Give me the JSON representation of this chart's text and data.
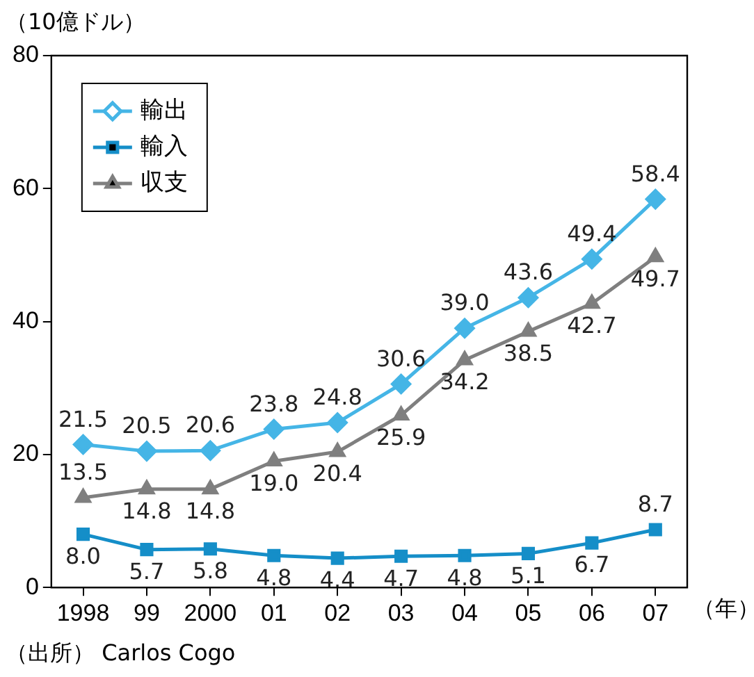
{
  "chart_data": {
    "type": "line",
    "ylabel": "（10億ドル）",
    "xlabel": "（年）",
    "categories": [
      "1998",
      "99",
      "2000",
      "01",
      "02",
      "03",
      "04",
      "05",
      "06",
      "07"
    ],
    "series": [
      {
        "name": "輸出",
        "color": "#45b5e6",
        "marker": "diamond",
        "values": [
          21.5,
          20.5,
          20.6,
          23.8,
          24.8,
          30.6,
          39.0,
          43.6,
          49.4,
          58.4
        ],
        "value_labels": [
          "21.5",
          "20.5",
          "20.6",
          "23.8",
          "24.8",
          "30.6",
          "39.0",
          "43.6",
          "49.4",
          "58.4"
        ]
      },
      {
        "name": "輸入",
        "color": "#158ec8",
        "marker": "square",
        "values": [
          8.0,
          5.7,
          5.8,
          4.8,
          4.4,
          4.7,
          4.8,
          5.1,
          6.7,
          8.7
        ],
        "value_labels": [
          "8.0",
          "5.7",
          "5.8",
          "4.8",
          "4.4",
          "4.7",
          "4.8",
          "5.1",
          "6.7",
          "8.7"
        ]
      },
      {
        "name": "収支",
        "color": "#7f7f7f",
        "marker": "triangle",
        "values": [
          13.5,
          14.8,
          14.8,
          19.0,
          20.4,
          25.9,
          34.2,
          38.5,
          42.7,
          49.7
        ],
        "value_labels": [
          "13.5",
          "14.8",
          "14.8",
          "19.0",
          "20.4",
          "25.9",
          "34.2",
          "38.5",
          "42.7",
          "49.7"
        ]
      }
    ],
    "ylim": [
      0,
      80
    ],
    "yticks": [
      0,
      20,
      40,
      60,
      80
    ],
    "grid": false,
    "legend": "top left",
    "annotations": [
      "（出所） Carlos Cogo"
    ]
  }
}
